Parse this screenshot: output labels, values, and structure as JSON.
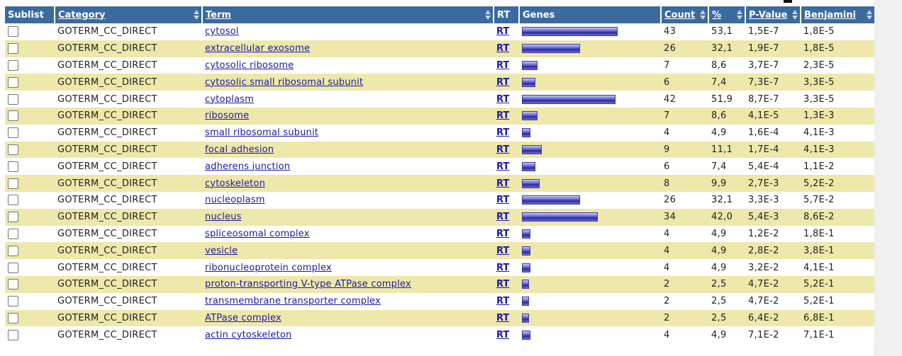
{
  "colors": {
    "header_bg": "#3b6a9e",
    "row_alt": "#eee8aa",
    "link": "#1a1aa6",
    "bar": "#2a2aa0"
  },
  "header": {
    "sublist": "Sublist",
    "category": "Category",
    "term": "Term",
    "rt": "RT",
    "genes": "Genes",
    "count": "Count",
    "percent": "%",
    "pvalue": "P-Value",
    "benjamini": "Benjamini"
  },
  "rows": [
    {
      "category": "GOTERM_CC_DIRECT",
      "term": "cytosol",
      "rt": "RT",
      "count": "43",
      "percent": "53,1",
      "pvalue": "1,5E-7",
      "benjamini": "1,8E-5",
      "gene_fraction": 0.531
    },
    {
      "category": "GOTERM_CC_DIRECT",
      "term": "extracellular exosome",
      "rt": "RT",
      "count": "26",
      "percent": "32,1",
      "pvalue": "1,9E-7",
      "benjamini": "1,8E-5",
      "gene_fraction": 0.321
    },
    {
      "category": "GOTERM_CC_DIRECT",
      "term": "cytosolic ribosome",
      "rt": "RT",
      "count": "7",
      "percent": "8,6",
      "pvalue": "3,7E-7",
      "benjamini": "2,3E-5",
      "gene_fraction": 0.086
    },
    {
      "category": "GOTERM_CC_DIRECT",
      "term": "cytosolic small ribosomal subunit",
      "rt": "RT",
      "count": "6",
      "percent": "7,4",
      "pvalue": "7,3E-7",
      "benjamini": "3,3E-5",
      "gene_fraction": 0.074
    },
    {
      "category": "GOTERM_CC_DIRECT",
      "term": "cytoplasm",
      "rt": "RT",
      "count": "42",
      "percent": "51,9",
      "pvalue": "8,7E-7",
      "benjamini": "3,3E-5",
      "gene_fraction": 0.519
    },
    {
      "category": "GOTERM_CC_DIRECT",
      "term": "ribosome",
      "rt": "RT",
      "count": "7",
      "percent": "8,6",
      "pvalue": "4,1E-5",
      "benjamini": "1,3E-3",
      "gene_fraction": 0.086
    },
    {
      "category": "GOTERM_CC_DIRECT",
      "term": "small ribosomal subunit",
      "rt": "RT",
      "count": "4",
      "percent": "4,9",
      "pvalue": "1,6E-4",
      "benjamini": "4,1E-3",
      "gene_fraction": 0.049
    },
    {
      "category": "GOTERM_CC_DIRECT",
      "term": "focal adhesion",
      "rt": "RT",
      "count": "9",
      "percent": "11,1",
      "pvalue": "1,7E-4",
      "benjamini": "4,1E-3",
      "gene_fraction": 0.111
    },
    {
      "category": "GOTERM_CC_DIRECT",
      "term": "adherens junction",
      "rt": "RT",
      "count": "6",
      "percent": "7,4",
      "pvalue": "5,4E-4",
      "benjamini": "1,1E-2",
      "gene_fraction": 0.074
    },
    {
      "category": "GOTERM_CC_DIRECT",
      "term": "cytoskeleton",
      "rt": "RT",
      "count": "8",
      "percent": "9,9",
      "pvalue": "2,7E-3",
      "benjamini": "5,2E-2",
      "gene_fraction": 0.099
    },
    {
      "category": "GOTERM_CC_DIRECT",
      "term": "nucleoplasm",
      "rt": "RT",
      "count": "26",
      "percent": "32,1",
      "pvalue": "3,3E-3",
      "benjamini": "5,7E-2",
      "gene_fraction": 0.321
    },
    {
      "category": "GOTERM_CC_DIRECT",
      "term": "nucleus",
      "rt": "RT",
      "count": "34",
      "percent": "42,0",
      "pvalue": "5,4E-3",
      "benjamini": "8,6E-2",
      "gene_fraction": 0.42
    },
    {
      "category": "GOTERM_CC_DIRECT",
      "term": "spliceosomal complex",
      "rt": "RT",
      "count": "4",
      "percent": "4,9",
      "pvalue": "1,2E-2",
      "benjamini": "1,8E-1",
      "gene_fraction": 0.049
    },
    {
      "category": "GOTERM_CC_DIRECT",
      "term": "vesicle",
      "rt": "RT",
      "count": "4",
      "percent": "4,9",
      "pvalue": "2,8E-2",
      "benjamini": "3,8E-1",
      "gene_fraction": 0.049
    },
    {
      "category": "GOTERM_CC_DIRECT",
      "term": "ribonucleoprotein complex",
      "rt": "RT",
      "count": "4",
      "percent": "4,9",
      "pvalue": "3,2E-2",
      "benjamini": "4,1E-1",
      "gene_fraction": 0.049
    },
    {
      "category": "GOTERM_CC_DIRECT",
      "term": "proton-transporting V-type ATPase complex",
      "rt": "RT",
      "count": "2",
      "percent": "2,5",
      "pvalue": "4,7E-2",
      "benjamini": "5,2E-1",
      "gene_fraction": 0.025
    },
    {
      "category": "GOTERM_CC_DIRECT",
      "term": "transmembrane transporter complex",
      "rt": "RT",
      "count": "2",
      "percent": "2,5",
      "pvalue": "4,7E-2",
      "benjamini": "5,2E-1",
      "gene_fraction": 0.025
    },
    {
      "category": "GOTERM_CC_DIRECT",
      "term": "ATPase complex",
      "rt": "RT",
      "count": "2",
      "percent": "2,5",
      "pvalue": "6,4E-2",
      "benjamini": "6,8E-1",
      "gene_fraction": 0.025
    },
    {
      "category": "GOTERM_CC_DIRECT",
      "term": "actin cytoskeleton",
      "rt": "RT",
      "count": "4",
      "percent": "4,9",
      "pvalue": "7,1E-2",
      "benjamini": "7,1E-1",
      "gene_fraction": 0.049
    }
  ]
}
